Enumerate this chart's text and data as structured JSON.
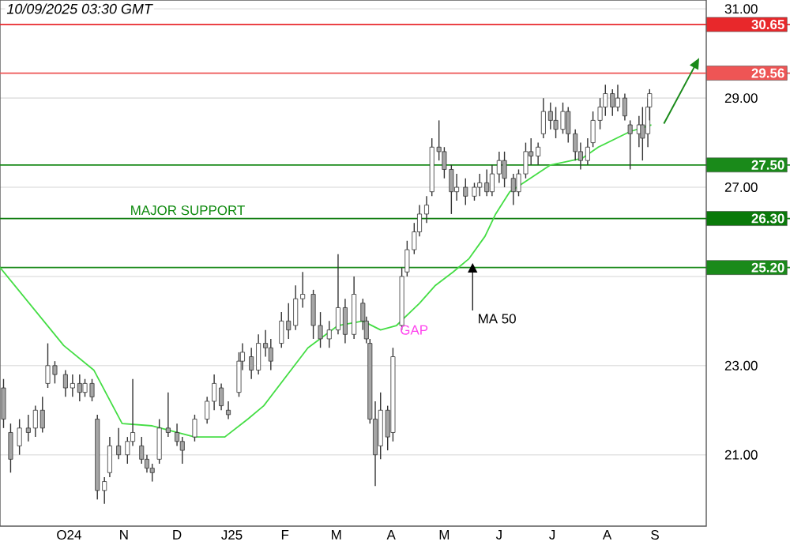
{
  "chart_data": {
    "type": "candlestick",
    "title": "10/09/2025 03:30 GMT",
    "color": "#333333",
    "x": [
      "2024-09-09",
      "2024-09-13",
      "2024-09-18",
      "2024-09-23",
      "2024-09-27",
      "2024-10-01",
      "2024-10-04",
      "2024-10-08",
      "2024-10-14",
      "2024-10-18",
      "2024-10-22",
      "2024-10-25",
      "2024-10-29",
      "2024-11-01",
      "2024-11-05",
      "2024-11-08",
      "2024-11-13",
      "2024-11-18",
      "2024-11-21",
      "2024-11-26",
      "2024-11-29",
      "2024-12-02",
      "2024-12-06",
      "2024-12-11",
      "2024-12-16",
      "2024-12-19",
      "2024-12-26",
      "2025-01-02",
      "2025-01-06",
      "2025-01-10",
      "2025-01-14",
      "2025-01-20",
      "2025-01-22",
      "2025-01-27",
      "2025-01-31",
      "2025-02-04",
      "2025-02-07",
      "2025-02-13",
      "2025-02-17",
      "2025-02-21",
      "2025-02-25",
      "2025-03-03",
      "2025-03-07",
      "2025-03-12",
      "2025-03-17",
      "2025-03-21",
      "2025-03-26",
      "2025-03-31",
      "2025-04-02",
      "2025-04-04",
      "2025-04-07",
      "2025-04-10",
      "2025-04-14",
      "2025-04-17",
      "2025-04-22",
      "2025-04-25",
      "2025-04-29",
      "2025-05-02",
      "2025-05-06",
      "2025-05-09",
      "2025-05-13",
      "2025-05-16",
      "2025-05-20",
      "2025-05-23",
      "2025-05-28",
      "2025-06-02",
      "2025-06-05",
      "2025-06-09",
      "2025-06-12",
      "2025-06-16",
      "2025-06-19",
      "2025-06-24",
      "2025-06-27",
      "2025-07-01",
      "2025-07-04",
      "2025-07-08",
      "2025-07-11",
      "2025-07-15",
      "2025-07-18",
      "2025-07-22",
      "2025-07-25",
      "2025-07-29",
      "2025-08-01",
      "2025-08-05",
      "2025-08-08",
      "2025-08-12",
      "2025-08-15",
      "2025-08-19",
      "2025-08-22",
      "2025-08-26",
      "2025-08-29",
      "2025-09-03",
      "2025-09-05",
      "2025-09-08",
      "2025-09-09"
    ],
    "ohlc": [
      [
        22.5,
        22.7,
        21.6,
        21.8
      ],
      [
        21.5,
        21.7,
        20.6,
        20.9
      ],
      [
        21.2,
        21.8,
        21.0,
        21.6
      ],
      [
        21.6,
        21.9,
        21.3,
        21.5
      ],
      [
        21.6,
        22.1,
        21.4,
        22.0
      ],
      [
        22.0,
        22.3,
        21.5,
        21.6
      ],
      [
        22.6,
        23.5,
        22.5,
        23.0
      ],
      [
        23.0,
        23.1,
        22.6,
        22.8
      ],
      [
        22.8,
        22.9,
        22.3,
        22.5
      ],
      [
        22.5,
        22.8,
        22.3,
        22.6
      ],
      [
        22.6,
        22.8,
        22.2,
        22.4
      ],
      [
        22.4,
        22.7,
        22.3,
        22.6
      ],
      [
        22.6,
        22.7,
        22.2,
        22.3
      ],
      [
        21.8,
        21.9,
        20.0,
        20.2
      ],
      [
        20.2,
        20.5,
        19.9,
        20.4
      ],
      [
        20.6,
        21.4,
        20.5,
        21.2
      ],
      [
        21.2,
        21.6,
        20.9,
        21.0
      ],
      [
        21.0,
        21.4,
        20.8,
        21.3
      ],
      [
        21.3,
        22.7,
        21.2,
        21.5
      ],
      [
        21.2,
        21.4,
        20.8,
        20.9
      ],
      [
        20.9,
        21.0,
        20.6,
        20.7
      ],
      [
        20.7,
        20.8,
        20.4,
        20.6
      ],
      [
        20.9,
        21.8,
        20.8,
        21.6
      ],
      [
        21.6,
        22.4,
        21.4,
        21.5
      ],
      [
        21.5,
        21.7,
        21.2,
        21.3
      ],
      [
        21.3,
        21.4,
        20.8,
        21.1
      ],
      [
        21.4,
        21.9,
        21.3,
        21.8
      ],
      [
        21.8,
        22.3,
        21.7,
        22.2
      ],
      [
        22.2,
        22.8,
        22.0,
        22.6
      ],
      [
        22.5,
        22.6,
        22.0,
        22.1
      ],
      [
        22.0,
        22.2,
        21.8,
        21.9
      ],
      [
        22.4,
        23.3,
        22.3,
        23.1
      ],
      [
        23.1,
        23.5,
        22.9,
        23.3
      ],
      [
        23.2,
        23.4,
        22.7,
        22.9
      ],
      [
        22.9,
        23.7,
        22.8,
        23.5
      ],
      [
        23.5,
        23.8,
        23.2,
        23.4
      ],
      [
        23.4,
        23.6,
        22.9,
        23.1
      ],
      [
        23.5,
        24.2,
        23.4,
        24.0
      ],
      [
        24.0,
        24.4,
        23.6,
        23.8
      ],
      [
        23.9,
        24.8,
        23.8,
        24.5
      ],
      [
        24.5,
        25.1,
        24.3,
        24.6
      ],
      [
        24.6,
        24.7,
        23.6,
        23.9
      ],
      [
        23.9,
        24.2,
        23.4,
        23.6
      ],
      [
        23.6,
        24.0,
        23.4,
        23.8
      ],
      [
        23.8,
        25.5,
        23.7,
        24.3
      ],
      [
        24.3,
        24.5,
        23.5,
        23.7
      ],
      [
        23.7,
        25.0,
        23.6,
        24.6
      ],
      [
        24.4,
        24.5,
        23.8,
        24.0
      ],
      [
        24.0,
        24.1,
        23.5,
        23.6
      ],
      [
        23.5,
        23.6,
        21.7,
        21.8
      ],
      [
        21.8,
        22.2,
        20.3,
        21.0
      ],
      [
        21.2,
        22.4,
        20.9,
        22.0
      ],
      [
        22.0,
        22.1,
        21.1,
        21.4
      ],
      [
        21.5,
        23.4,
        21.3,
        23.2
      ],
      [
        23.9,
        25.2,
        23.8,
        25.0
      ],
      [
        25.1,
        25.8,
        25.0,
        25.6
      ],
      [
        25.6,
        26.2,
        25.5,
        26.0
      ],
      [
        26.0,
        26.6,
        25.9,
        26.4
      ],
      [
        26.4,
        26.8,
        26.2,
        26.6
      ],
      [
        26.9,
        28.1,
        26.8,
        27.9
      ],
      [
        27.9,
        28.5,
        27.6,
        27.8
      ],
      [
        27.8,
        27.9,
        27.2,
        27.4
      ],
      [
        27.4,
        27.5,
        26.4,
        26.9
      ],
      [
        26.9,
        27.3,
        26.7,
        27.0
      ],
      [
        27.0,
        27.2,
        26.6,
        26.8
      ],
      [
        26.8,
        27.1,
        26.7,
        27.0
      ],
      [
        27.0,
        27.3,
        26.8,
        27.1
      ],
      [
        27.1,
        27.4,
        26.8,
        26.9
      ],
      [
        26.9,
        27.5,
        26.8,
        27.3
      ],
      [
        27.3,
        27.8,
        27.1,
        27.6
      ],
      [
        27.6,
        27.8,
        27.0,
        27.2
      ],
      [
        27.2,
        27.3,
        26.6,
        26.9
      ],
      [
        26.9,
        27.4,
        26.8,
        27.3
      ],
      [
        27.3,
        28.0,
        27.2,
        27.8
      ],
      [
        27.8,
        28.1,
        27.5,
        27.7
      ],
      [
        27.7,
        28.0,
        27.5,
        27.9
      ],
      [
        28.2,
        29.0,
        28.1,
        28.7
      ],
      [
        28.7,
        28.9,
        28.3,
        28.5
      ],
      [
        28.5,
        28.8,
        28.1,
        28.3
      ],
      [
        28.3,
        28.9,
        28.2,
        28.7
      ],
      [
        28.7,
        28.8,
        28.0,
        28.2
      ],
      [
        28.2,
        28.3,
        27.6,
        27.8
      ],
      [
        27.8,
        28.0,
        27.4,
        27.6
      ],
      [
        27.6,
        28.1,
        27.5,
        27.9
      ],
      [
        28.0,
        28.7,
        27.9,
        28.5
      ],
      [
        28.5,
        29.0,
        28.3,
        28.8
      ],
      [
        28.8,
        29.3,
        28.6,
        29.1
      ],
      [
        29.1,
        29.2,
        28.6,
        28.8
      ],
      [
        28.8,
        29.3,
        28.7,
        29.0
      ],
      [
        29.0,
        29.1,
        28.5,
        28.6
      ],
      [
        28.4,
        28.5,
        27.4,
        28.2
      ],
      [
        28.2,
        28.6,
        27.9,
        28.4
      ],
      [
        28.4,
        28.8,
        27.6,
        28.1
      ],
      [
        28.2,
        29.0,
        27.9,
        28.8
      ],
      [
        28.8,
        29.2,
        28.5,
        29.1
      ]
    ],
    "series": [
      {
        "type": "line",
        "color": "#44dd44",
        "x": [
          "2024-09-07",
          "2024-10-13",
          "2024-10-30",
          "2024-11-15",
          "2024-12-02",
          "2024-12-26",
          "2025-01-12",
          "2025-01-25",
          "2025-02-03",
          "2025-02-28",
          "2025-03-17",
          "2025-03-31",
          "2025-04-10",
          "2025-04-19",
          "2025-05-02",
          "2025-05-11",
          "2025-05-21",
          "2025-05-30",
          "2025-06-08",
          "2025-06-14",
          "2025-06-22",
          "2025-06-26",
          "2025-07-15",
          "2025-08-02",
          "2025-08-11",
          "2025-08-29",
          "2025-09-10"
        ],
        "values": [
          25.2,
          23.45,
          22.9,
          21.7,
          21.65,
          21.4,
          21.4,
          21.8,
          22.1,
          23.4,
          23.9,
          24.0,
          23.8,
          23.9,
          24.4,
          24.8,
          25.1,
          25.4,
          25.9,
          26.4,
          26.9,
          27.0,
          27.5,
          27.65,
          27.9,
          28.25,
          28.4
        ]
      }
    ],
    "xlim": [
      "2024-09-07",
      "2025-10-11"
    ],
    "xticks": [
      {
        "value": "2024-10-16",
        "label": "O24"
      },
      {
        "value": "2024-11-16",
        "label": "N"
      },
      {
        "value": "2024-12-16",
        "label": "D"
      },
      {
        "value": "2025-01-16",
        "label": "J25"
      },
      {
        "value": "2025-02-15",
        "label": "F"
      },
      {
        "value": "2025-03-16",
        "label": "M"
      },
      {
        "value": "2025-04-16",
        "label": "A"
      },
      {
        "value": "2025-05-16",
        "label": "M"
      },
      {
        "value": "2025-06-16",
        "label": "J"
      },
      {
        "value": "2025-07-16",
        "label": "J"
      },
      {
        "value": "2025-08-16",
        "label": "A"
      },
      {
        "value": "2025-09-12",
        "label": "S"
      }
    ],
    "ylim": [
      19.4,
      31.2
    ],
    "yticks": [
      {
        "value": 21,
        "label": "21.00"
      },
      {
        "value": 23,
        "label": "23.00"
      },
      {
        "value": 25,
        "label": null
      },
      {
        "value": 27,
        "label": "27.00"
      },
      {
        "value": 29,
        "label": "29.00"
      },
      {
        "value": 31,
        "label": "31.00"
      }
    ],
    "grid": "y",
    "ref_lines": [
      {
        "axis": "y",
        "value": 30.65,
        "label": "30.65",
        "color": "#e8282b"
      },
      {
        "axis": "y",
        "value": 29.56,
        "label": "29.56",
        "color": "#ee5555"
      },
      {
        "axis": "y",
        "value": 27.5,
        "label": "27.50",
        "color": "#1a8a1a"
      },
      {
        "axis": "y",
        "value": 26.3,
        "label": "26.30",
        "color": "#0a7a0a"
      },
      {
        "axis": "y",
        "value": 25.2,
        "label": "25.20",
        "color": "#1a8a1a"
      }
    ],
    "annotations": [
      {
        "text": "MAJOR SUPPORT",
        "x": "2024-12-22",
        "y": 26.3
      },
      {
        "text": "GAP",
        "x": "2025-04-19",
        "y": 23.8
      },
      {
        "text": "MA 50",
        "x": "2025-06-01",
        "y": 25.3
      }
    ]
  }
}
